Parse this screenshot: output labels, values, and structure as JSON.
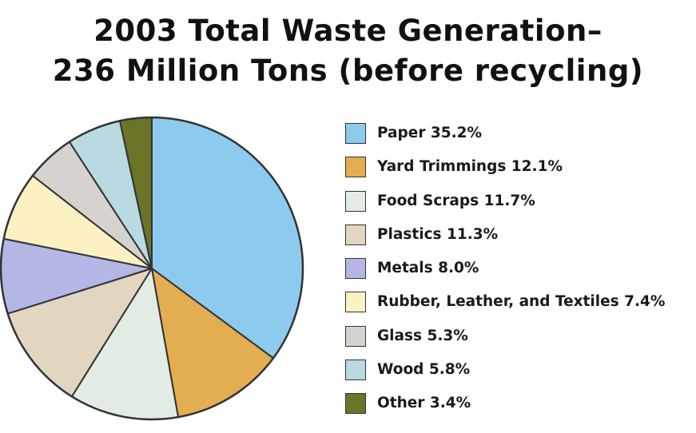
{
  "chart_data": {
    "type": "pie",
    "title_lines": [
      "2003 Total Waste Generation–",
      "236 Million Tons (before recycling)"
    ],
    "series": [
      {
        "name": "Paper",
        "value": 35.2,
        "label": "Paper 35.2%",
        "color": "#8ccbee"
      },
      {
        "name": "Yard Trimmings",
        "value": 12.1,
        "label": "Yard Trimmings 12.1%",
        "color": "#e3ad52"
      },
      {
        "name": "Food Scraps",
        "value": 11.7,
        "label": "Food Scraps 11.7%",
        "color": "#e2ece3"
      },
      {
        "name": "Plastics",
        "value": 11.3,
        "label": "Plastics 11.3%",
        "color": "#e2d6c1"
      },
      {
        "name": "Metals",
        "value": 8.0,
        "label": "Metals 8.0%",
        "color": "#b4b7e6"
      },
      {
        "name": "Rubber, Leather, and Textiles",
        "value": 7.4,
        "label": "Rubber, Leather, and Textiles 7.4%",
        "color": "#fbf1c2"
      },
      {
        "name": "Glass",
        "value": 5.3,
        "label": "Glass 5.3%",
        "color": "#d6d2ce"
      },
      {
        "name": "Wood",
        "value": 5.8,
        "label": "Wood 5.8%",
        "color": "#b8dae0"
      },
      {
        "name": "Other",
        "value": 3.4,
        "label": "Other 3.4%",
        "color": "#6b7427"
      }
    ],
    "start_angle_deg": 0,
    "direction": "clockwise",
    "legend_position": "right",
    "outline_color": "#333333"
  }
}
